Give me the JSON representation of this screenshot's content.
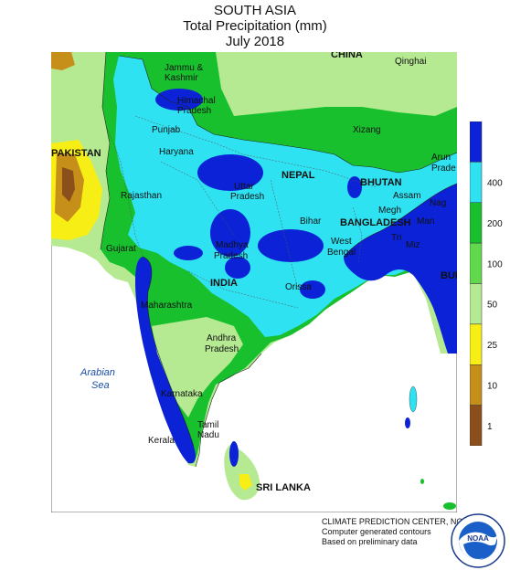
{
  "header": {
    "region": "SOUTH ASIA",
    "variable": "Total Precipitation (mm)",
    "period": "July 2018"
  },
  "map_labels": {
    "china": "CHINA",
    "qinghai": "Qinghai",
    "jammu_kashmir_line1": "Jammu &",
    "jammu_kashmir_line2": "Kashmir",
    "himachal_line1": "Himachal",
    "himachal_line2": "Pradesh",
    "punjab": "Punjab",
    "haryana": "Haryana",
    "xizang": "Xizang",
    "pakistan": "PAKISTAN",
    "uttar_line1": "Uttar",
    "uttar_line2": "Pradesh",
    "nepal": "NEPAL",
    "rajasthan": "Rajasthan",
    "bhutan": "BHUTAN",
    "arunachal_line1": "Arun",
    "arunachal_line2": "Prade",
    "assam": "Assam",
    "naga": "Nag",
    "manipur": "Man",
    "meghalaya": "Megh",
    "bihar": "Bihar",
    "bangladesh": "BANGLADESH",
    "tripura": "Tri",
    "mizoram": "Miz",
    "gujarat": "Gujarat",
    "madhya_line1": "Madhya",
    "madhya_line2": "Pradesh",
    "west_bengal_line1": "West",
    "west_bengal_line2": "Bengal",
    "india": "INDIA",
    "orissa": "Orissa",
    "burma": "BUI",
    "maharashtra": "Maharashtra",
    "andhra_line1": "Andhra",
    "andhra_line2": "Pradesh",
    "arabian_sea_line1": "Arabian",
    "arabian_sea_line2": "Sea",
    "karnataka": "Karnataka",
    "tamil_line1": "Tamil",
    "tamil_line2": "Nadu",
    "kerala": "Kerala",
    "sri_lanka": "SRI LANKA"
  },
  "legend": {
    "levels": [
      {
        "label": "",
        "color": "#0b22d6"
      },
      {
        "label": "400",
        "color": "#2fe2f2"
      },
      {
        "label": "200",
        "color": "#18c02e"
      },
      {
        "label": "100",
        "color": "#62d94c"
      },
      {
        "label": "50",
        "color": "#b5ea92"
      },
      {
        "label": "25",
        "color": "#f7ee16"
      },
      {
        "label": "10",
        "color": "#c68f1a"
      },
      {
        "label": "1",
        "color": "#8a4f1a"
      }
    ]
  },
  "footer": {
    "line1": "CLIMATE PREDICTION CENTER, NOAA",
    "line2": "Computer generated contours",
    "line3": "Based on preliminary data"
  },
  "logo": {
    "text": "NOAA",
    "ring_text": "NATIONAL OCEANIC AND ATMOSPHERIC ADMINISTRATION · U.S. DEPARTMENT OF COMMERCE"
  }
}
